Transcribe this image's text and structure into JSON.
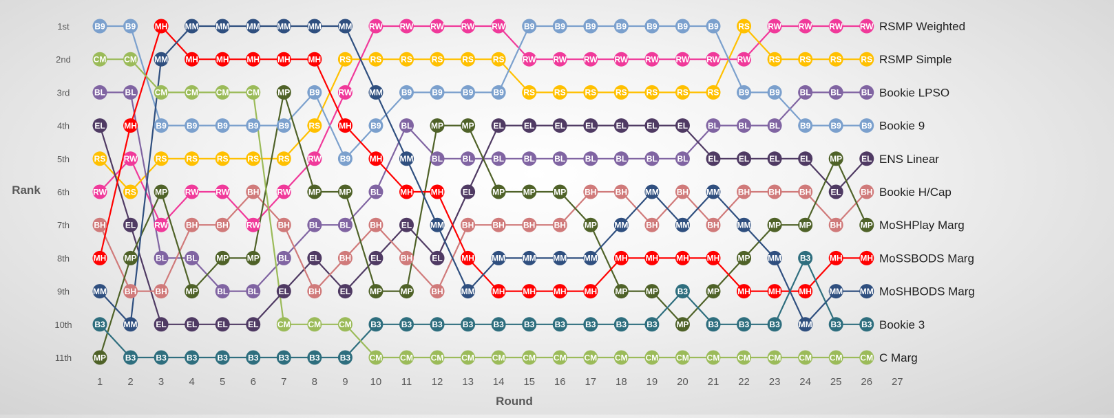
{
  "chart_data": {
    "type": "line",
    "title": "",
    "xlabel": "Round",
    "ylabel": "Rank",
    "x": [
      1,
      2,
      3,
      4,
      5,
      6,
      7,
      8,
      9,
      10,
      11,
      12,
      13,
      14,
      15,
      16,
      17,
      18,
      19,
      20,
      21,
      22,
      23,
      24,
      25,
      26
    ],
    "x_tick_labels": [
      "1",
      "2",
      "3",
      "4",
      "5",
      "6",
      "7",
      "8",
      "9",
      "10",
      "11",
      "12",
      "13",
      "14",
      "15",
      "16",
      "17",
      "18",
      "19",
      "20",
      "21",
      "22",
      "23",
      "24",
      "25",
      "26",
      "27"
    ],
    "y_tick_labels": [
      "1st",
      "2nd",
      "3rd",
      "4th",
      "5th",
      "6th",
      "7th",
      "8th",
      "9th",
      "10th",
      "11th"
    ],
    "ylim": [
      1,
      11
    ],
    "y_inverted": true,
    "legend_placement": "right, each label aligned with its line's final rank",
    "series": [
      {
        "name": "RSMP Weighted",
        "code": "RW",
        "color": "#f0399a",
        "values": [
          6,
          5,
          7,
          6,
          6,
          7,
          6,
          5,
          3,
          1,
          1,
          1,
          1,
          1,
          2,
          2,
          2,
          2,
          2,
          2,
          2,
          2,
          1,
          1,
          1,
          1
        ]
      },
      {
        "name": "RSMP Simple",
        "code": "RS",
        "color": "#ffc000",
        "values": [
          5,
          6,
          5,
          5,
          5,
          5,
          5,
          4,
          2,
          2,
          2,
          2,
          2,
          2,
          3,
          3,
          3,
          3,
          3,
          3,
          3,
          1,
          2,
          2,
          2,
          2
        ]
      },
      {
        "name": "Bookie LPSO",
        "code": "BL",
        "color": "#8064a2",
        "values": [
          3,
          3,
          8,
          8,
          9,
          9,
          8,
          7,
          7,
          6,
          4,
          5,
          5,
          5,
          5,
          5,
          5,
          5,
          5,
          5,
          4,
          4,
          4,
          3,
          3,
          3
        ]
      },
      {
        "name": "Bookie 9",
        "code": "B9",
        "color": "#7ba0cd",
        "values": [
          1,
          1,
          4,
          4,
          4,
          4,
          4,
          3,
          5,
          4,
          3,
          3,
          3,
          3,
          1,
          1,
          1,
          1,
          1,
          1,
          1,
          3,
          3,
          4,
          4,
          4
        ]
      },
      {
        "name": "ENS Linear",
        "code": "EL",
        "color": "#4f3a63",
        "values": [
          4,
          7,
          10,
          10,
          10,
          10,
          9,
          8,
          9,
          8,
          7,
          8,
          6,
          4,
          4,
          4,
          4,
          4,
          4,
          4,
          5,
          5,
          5,
          5,
          6,
          5
        ]
      },
      {
        "name": "Bookie H/Cap",
        "code": "BH",
        "color": "#d07a7a",
        "values": [
          7,
          9,
          9,
          7,
          7,
          6,
          7,
          9,
          8,
          7,
          8,
          9,
          7,
          7,
          7,
          7,
          6,
          6,
          7,
          6,
          7,
          6,
          6,
          6,
          7,
          6
        ]
      },
      {
        "name": "MoSHPlay Marg",
        "code": "MP",
        "color": "#4f6228",
        "values": [
          11,
          8,
          6,
          9,
          8,
          8,
          3,
          6,
          6,
          9,
          9,
          4,
          4,
          6,
          6,
          6,
          7,
          9,
          9,
          10,
          9,
          8,
          7,
          7,
          5,
          7
        ]
      },
      {
        "name": "MoSSBODS Marg",
        "code": "MH",
        "color": "#ff0000",
        "values": [
          8,
          4,
          1,
          2,
          2,
          2,
          2,
          2,
          4,
          5,
          6,
          6,
          8,
          9,
          9,
          9,
          9,
          8,
          8,
          8,
          8,
          9,
          9,
          9,
          8,
          8
        ]
      },
      {
        "name": "MoSHBODS Marg",
        "code": "MM",
        "color": "#2f4f7f",
        "values": [
          9,
          10,
          2,
          1,
          1,
          1,
          1,
          1,
          1,
          3,
          5,
          7,
          9,
          8,
          8,
          8,
          8,
          7,
          6,
          7,
          6,
          7,
          8,
          10,
          9,
          9
        ]
      },
      {
        "name": "Bookie 3",
        "code": "B3",
        "color": "#2e6e7e",
        "values": [
          10,
          11,
          11,
          11,
          11,
          11,
          11,
          11,
          11,
          10,
          10,
          10,
          10,
          10,
          10,
          10,
          10,
          10,
          10,
          9,
          10,
          10,
          10,
          8,
          10,
          10
        ]
      },
      {
        "name": "C Marg",
        "code": "CM",
        "color": "#9bbb59",
        "values": [
          2,
          2,
          3,
          3,
          3,
          3,
          10,
          10,
          10,
          11,
          11,
          11,
          11,
          11,
          11,
          11,
          11,
          11,
          11,
          11,
          11,
          11,
          11,
          11,
          11,
          11
        ]
      }
    ]
  }
}
